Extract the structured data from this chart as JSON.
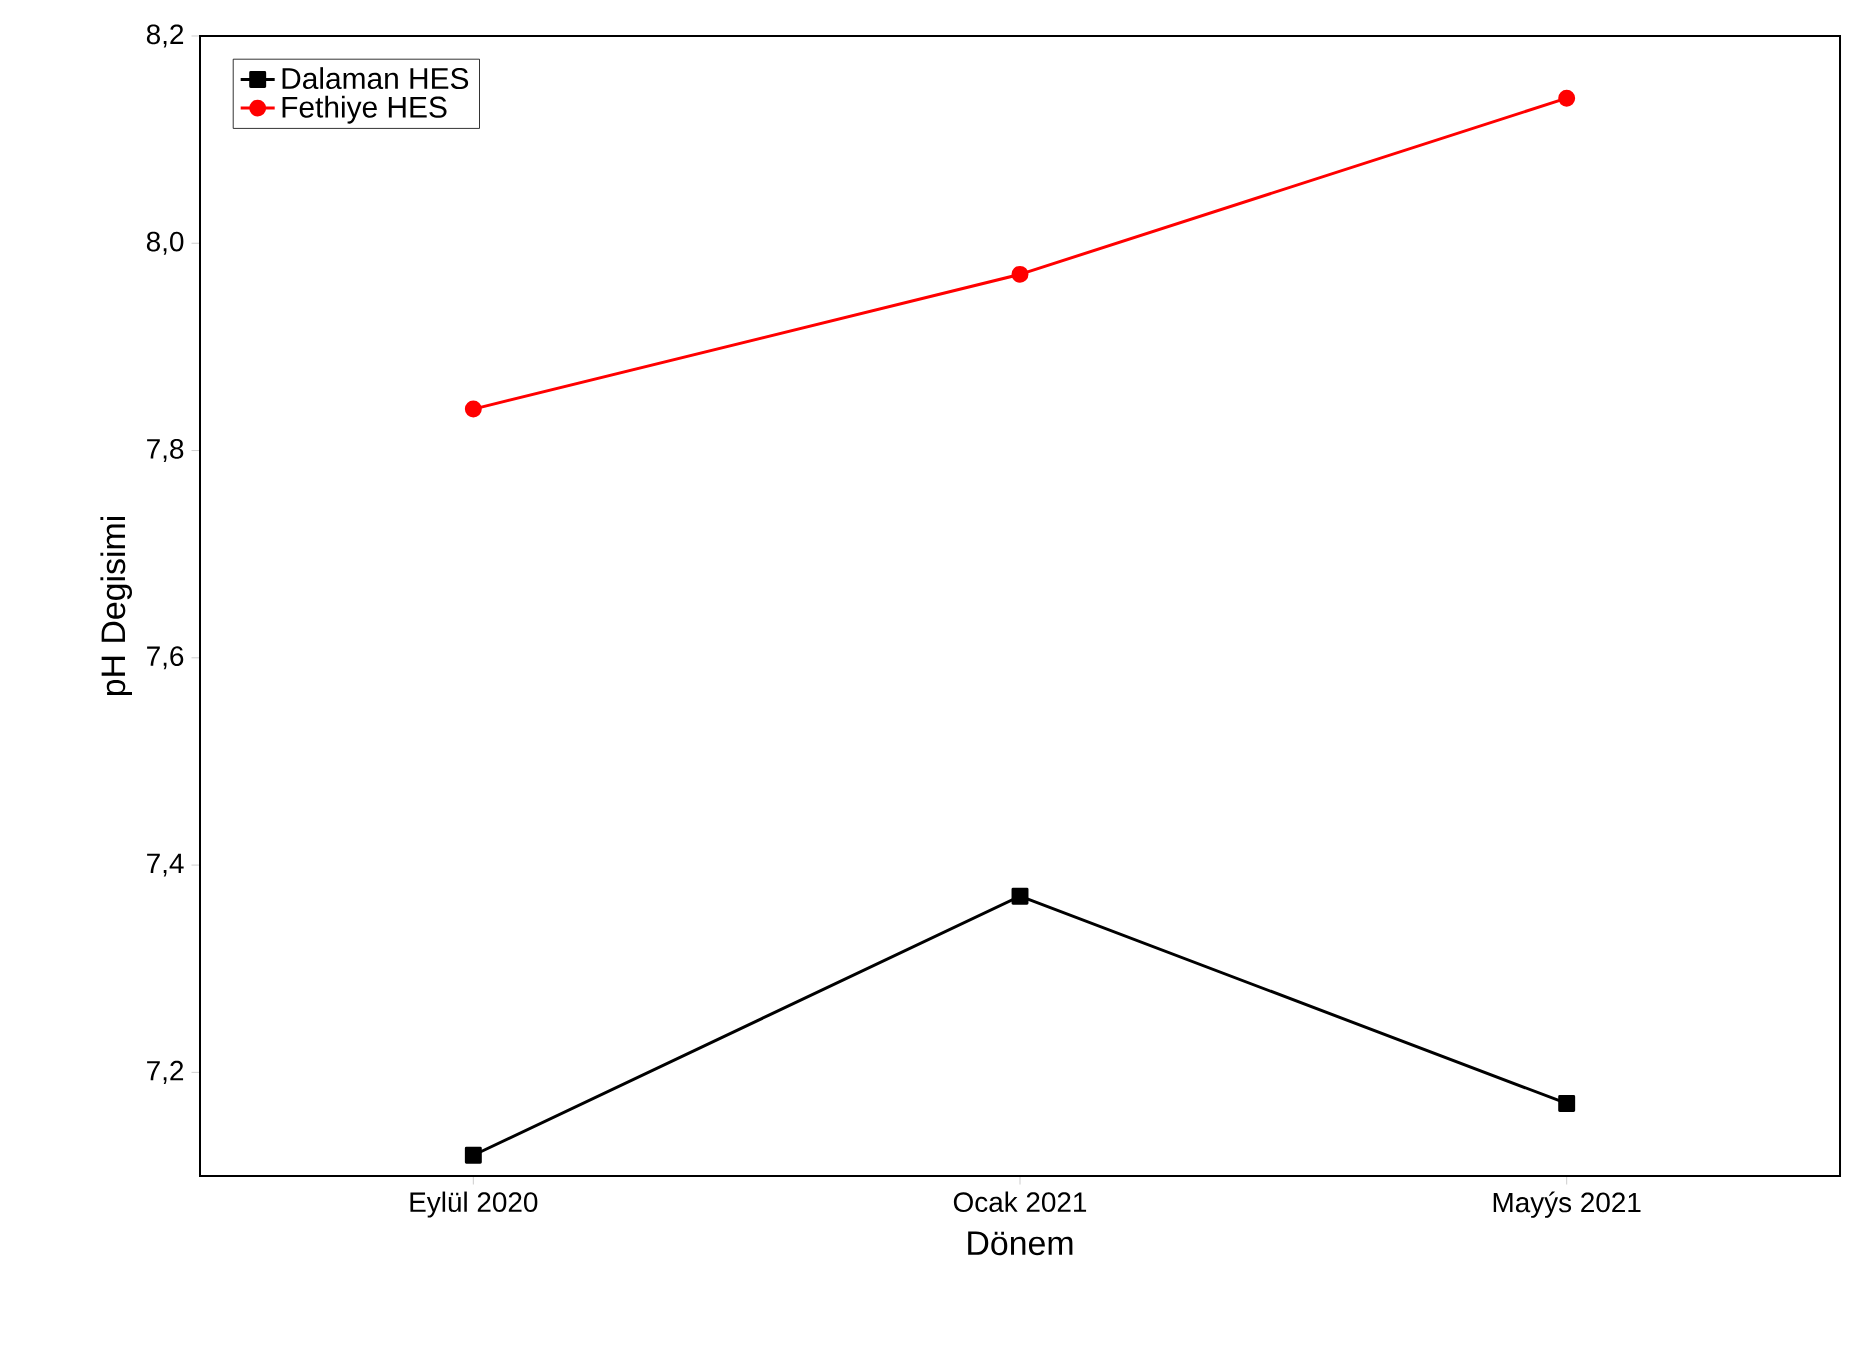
{
  "chart_data": {
    "type": "line",
    "xlabel": "Dönem",
    "ylabel": "pH Degisimi",
    "categories": [
      "Eylül 2020",
      "Ocak 2021",
      "Mayýs 2021"
    ],
    "series": [
      {
        "name": "Dalaman HES",
        "color": "#000000",
        "values": [
          7.12,
          7.37,
          7.17
        ],
        "marker": "square"
      },
      {
        "name": "Fethiye HES",
        "color": "#ff0000",
        "values": [
          7.84,
          7.97,
          8.14
        ],
        "marker": "circle"
      }
    ],
    "ylim": [
      7.1,
      8.2
    ],
    "yticks": [
      {
        "value": 7.2,
        "label": "7,2"
      },
      {
        "value": 7.4,
        "label": "7,4"
      },
      {
        "value": 7.6,
        "label": "7,6"
      },
      {
        "value": 7.8,
        "label": "7,8"
      },
      {
        "value": 8.0,
        "label": "8,0"
      },
      {
        "value": 8.2,
        "label": "8,2"
      }
    ],
    "legend": "top left",
    "line_style": "solid"
  }
}
